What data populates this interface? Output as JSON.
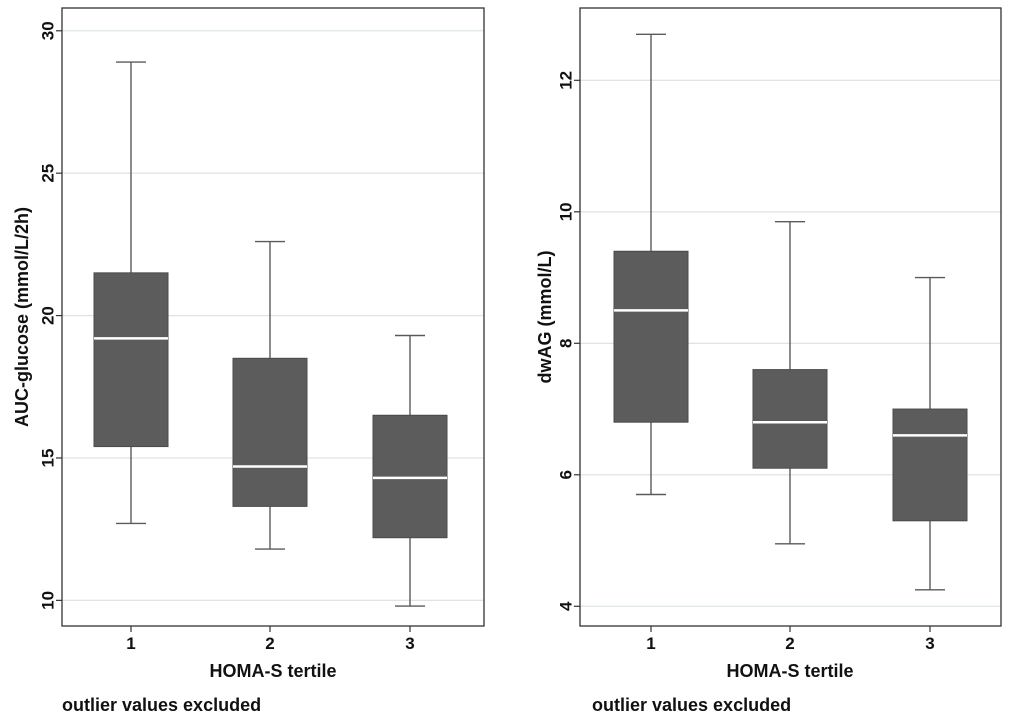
{
  "chart_data": [
    {
      "type": "box",
      "ylabel": "AUC-glucose (mmol/L/2h)",
      "xlabel": "HOMA-S tertile",
      "note": "outlier values excluded",
      "categories": [
        "1",
        "2",
        "3"
      ],
      "yticks": [
        "10",
        "15",
        "20",
        "25",
        "30"
      ],
      "ylim": [
        9.1,
        30.8
      ],
      "grid": true,
      "boxes": [
        {
          "category": "1",
          "whisker_low": 12.7,
          "q1": 15.4,
          "median": 19.2,
          "q3": 21.5,
          "whisker_high": 28.9
        },
        {
          "category": "2",
          "whisker_low": 11.8,
          "q1": 13.3,
          "median": 14.7,
          "q3": 18.5,
          "whisker_high": 22.6
        },
        {
          "category": "3",
          "whisker_low": 9.8,
          "q1": 12.2,
          "median": 14.3,
          "q3": 16.5,
          "whisker_high": 19.3
        }
      ]
    },
    {
      "type": "box",
      "ylabel": "dwAG (mmol/L)",
      "xlabel": "HOMA-S tertile",
      "note": "outlier values excluded",
      "categories": [
        "1",
        "2",
        "3"
      ],
      "yticks": [
        "4",
        "6",
        "8",
        "10",
        "12"
      ],
      "ylim": [
        3.7,
        13.1
      ],
      "grid": true,
      "boxes": [
        {
          "category": "1",
          "whisker_low": 5.7,
          "q1": 6.8,
          "median": 8.5,
          "q3": 9.4,
          "whisker_high": 12.7
        },
        {
          "category": "2",
          "whisker_low": 4.95,
          "q1": 6.1,
          "median": 6.8,
          "q3": 7.6,
          "whisker_high": 9.85
        },
        {
          "category": "3",
          "whisker_low": 4.25,
          "q1": 5.3,
          "median": 6.6,
          "q3": 7.0,
          "whisker_high": 9.0
        }
      ]
    }
  ]
}
